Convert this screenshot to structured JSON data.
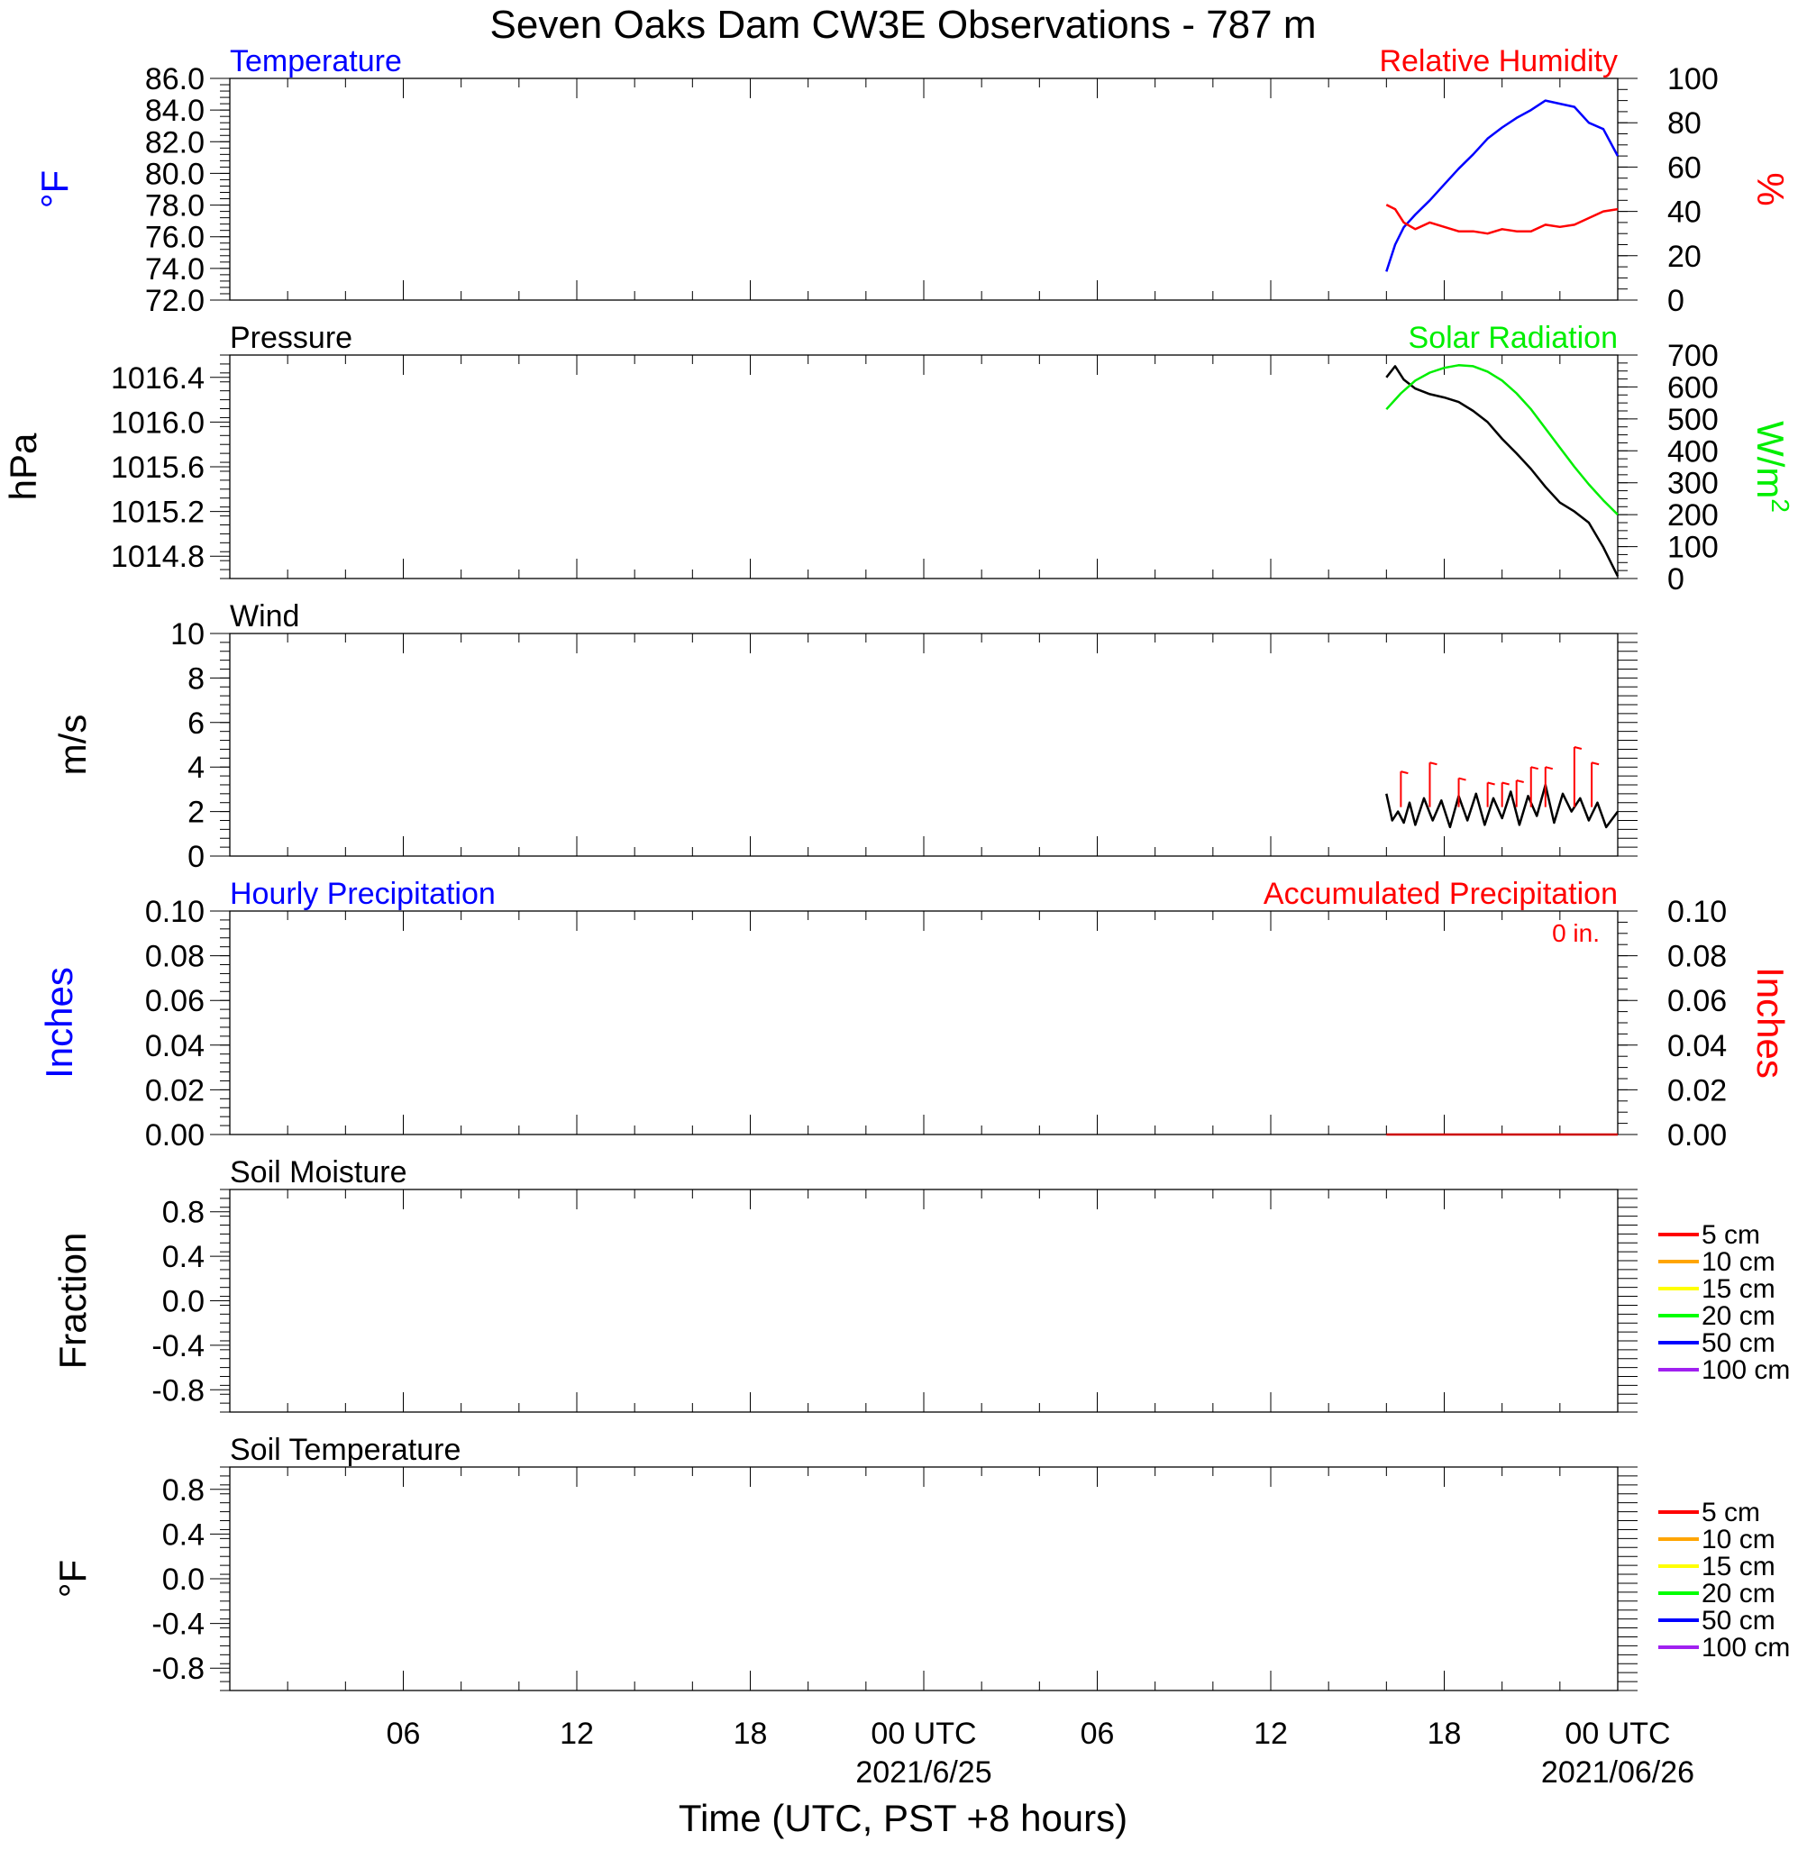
{
  "title": "Seven Oaks Dam CW3E Observations - 787 m",
  "colors": {
    "temperature": "#0000ff",
    "humidity": "#ff0000",
    "pressure": "#000000",
    "solar": "#00ee00",
    "wind_speed": "#000000",
    "wind_barb": "#ff0000",
    "hourly_precip": "#0000ff",
    "accum_precip": "#cc0000"
  },
  "time_axis": {
    "label": "Time (UTC, PST +8 hours)",
    "range_hours": [
      0,
      48
    ],
    "ticks": [
      {
        "hour": 6,
        "label": "06"
      },
      {
        "hour": 12,
        "label": "12"
      },
      {
        "hour": 18,
        "label": "18"
      },
      {
        "hour": 24,
        "label": "00 UTC"
      },
      {
        "hour": 30,
        "label": "06"
      },
      {
        "hour": 36,
        "label": "12"
      },
      {
        "hour": 42,
        "label": "18"
      },
      {
        "hour": 48,
        "label": "00 UTC"
      }
    ],
    "date_labels": [
      {
        "hour": 24,
        "label": "2021/6/25"
      },
      {
        "hour": 48,
        "label": "2021/06/26"
      }
    ]
  },
  "chart_data": [
    {
      "panel": "temperature-humidity",
      "type": "line",
      "left_title": "Temperature",
      "right_title": "Relative Humidity",
      "ylabel_left": "°F",
      "ylabel_right": "%",
      "ylim_left": [
        72.0,
        86.0
      ],
      "ylim_right": [
        0,
        100
      ],
      "yticks_left": [
        "86.0",
        "84.0",
        "82.0",
        "80.0",
        "78.0",
        "76.0",
        "74.0",
        "72.0"
      ],
      "yticks_right": [
        "100",
        "80",
        "60",
        "40",
        "20",
        "0"
      ],
      "series": [
        {
          "name": "Temperature",
          "axis": "left",
          "color": "#0000ff",
          "x": [
            40.0,
            40.3,
            40.6,
            41.0,
            41.5,
            42.0,
            42.5,
            43.0,
            43.5,
            44.0,
            44.5,
            45.0,
            45.5,
            46.0,
            46.5,
            47.0,
            47.5,
            48.0
          ],
          "y": [
            73.8,
            75.5,
            76.6,
            77.4,
            78.3,
            79.3,
            80.3,
            81.2,
            82.2,
            82.9,
            83.5,
            84.0,
            84.6,
            84.4,
            84.2,
            83.2,
            82.8,
            81.1
          ]
        },
        {
          "name": "Relative Humidity",
          "axis": "right",
          "color": "#ff0000",
          "x": [
            40.0,
            40.3,
            40.6,
            41.0,
            41.5,
            42.0,
            42.5,
            43.0,
            43.5,
            44.0,
            44.5,
            45.0,
            45.5,
            46.0,
            46.5,
            47.0,
            47.5,
            48.0
          ],
          "y": [
            43,
            41,
            35,
            32,
            35,
            33,
            31,
            31,
            30,
            32,
            31,
            31,
            34,
            33,
            34,
            37,
            40,
            41
          ]
        }
      ]
    },
    {
      "panel": "pressure-solar",
      "type": "line",
      "left_title": "Pressure",
      "right_title": "Solar Radiation",
      "ylabel_left": "hPa",
      "ylabel_right": "W/m",
      "ylabel_right_sup": "2",
      "ylim_left": [
        1014.6,
        1016.6
      ],
      "ylim_right": [
        0,
        700
      ],
      "yticks_left": [
        "1016.4",
        "1016.0",
        "1015.6",
        "1015.2",
        "1014.8"
      ],
      "yticks_right": [
        "700",
        "600",
        "500",
        "400",
        "300",
        "200",
        "100",
        "0"
      ],
      "series": [
        {
          "name": "Pressure",
          "axis": "left",
          "color": "#000000",
          "x": [
            40.0,
            40.3,
            40.6,
            41.0,
            41.5,
            42.0,
            42.5,
            43.0,
            43.5,
            44.0,
            44.5,
            45.0,
            45.5,
            46.0,
            46.5,
            47.0,
            47.5,
            48.0
          ],
          "y": [
            1016.4,
            1016.5,
            1016.38,
            1016.3,
            1016.25,
            1016.22,
            1016.18,
            1016.1,
            1016.0,
            1015.85,
            1015.72,
            1015.58,
            1015.42,
            1015.28,
            1015.2,
            1015.1,
            1014.88,
            1014.62
          ]
        },
        {
          "name": "Solar Radiation",
          "axis": "right",
          "color": "#00ee00",
          "x": [
            40.0,
            40.5,
            41.0,
            41.5,
            42.0,
            42.5,
            43.0,
            43.5,
            44.0,
            44.5,
            45.0,
            45.5,
            46.0,
            46.5,
            47.0,
            47.5,
            48.0
          ],
          "y": [
            530,
            580,
            620,
            645,
            660,
            668,
            665,
            648,
            620,
            580,
            530,
            470,
            410,
            350,
            295,
            245,
            200
          ]
        }
      ]
    },
    {
      "panel": "wind",
      "type": "line",
      "left_title": "Wind",
      "ylabel_left": "m/s",
      "ylim_left": [
        0,
        10
      ],
      "yticks_left": [
        "10",
        "8",
        "6",
        "4",
        "2",
        "0"
      ],
      "series": [
        {
          "name": "Wind speed",
          "axis": "left",
          "color": "#000000",
          "x": [
            40.0,
            40.2,
            40.4,
            40.6,
            40.8,
            41.0,
            41.3,
            41.6,
            41.9,
            42.2,
            42.5,
            42.8,
            43.1,
            43.4,
            43.7,
            44.0,
            44.3,
            44.6,
            44.9,
            45.2,
            45.5,
            45.8,
            46.1,
            46.4,
            46.7,
            47.0,
            47.3,
            47.6,
            48.0
          ],
          "y": [
            2.8,
            1.6,
            2.0,
            1.5,
            2.4,
            1.4,
            2.6,
            1.6,
            2.5,
            1.3,
            2.7,
            1.6,
            2.8,
            1.4,
            2.6,
            1.7,
            2.9,
            1.4,
            2.7,
            1.8,
            3.2,
            1.5,
            2.8,
            2.0,
            2.6,
            1.6,
            2.4,
            1.3,
            2.0
          ]
        }
      ],
      "barbs": {
        "color": "#ff0000",
        "x": [
          40.5,
          41.5,
          42.5,
          43.5,
          44.0,
          44.5,
          45.0,
          45.5,
          46.5,
          47.1
        ],
        "top": [
          3.8,
          4.2,
          3.5,
          3.3,
          3.3,
          3.4,
          4.0,
          4.0,
          4.9,
          4.2
        ]
      }
    },
    {
      "panel": "precipitation",
      "type": "line",
      "left_title": "Hourly Precipitation",
      "right_title": "Accumulated Precipitation",
      "annotation": "0 in.",
      "ylabel_left": "Inches",
      "ylabel_right": "Inches",
      "ylim_left": [
        0.0,
        0.1
      ],
      "ylim_right": [
        0.0,
        0.1
      ],
      "yticks_left": [
        "0.10",
        "0.08",
        "0.06",
        "0.04",
        "0.02",
        "0.00"
      ],
      "yticks_right": [
        "0.10",
        "0.08",
        "0.06",
        "0.04",
        "0.02",
        "0.00"
      ],
      "series": [
        {
          "name": "Accumulated Precipitation",
          "axis": "right",
          "color": "#cc0000",
          "x": [
            40.0,
            48.0
          ],
          "y": [
            0.0,
            0.0
          ]
        }
      ]
    },
    {
      "panel": "soil-moisture",
      "type": "line",
      "left_title": "Soil Moisture",
      "ylabel_left": "Fraction",
      "ylim_left": [
        -1.0,
        1.0
      ],
      "yticks_left": [
        "0.8",
        "0.4",
        "0.0",
        "-0.4",
        "-0.8"
      ],
      "legend": [
        {
          "label": "5 cm",
          "color": "#ff0000"
        },
        {
          "label": "10 cm",
          "color": "#ffa500"
        },
        {
          "label": "15 cm",
          "color": "#ffff00"
        },
        {
          "label": "20 cm",
          "color": "#00ff00"
        },
        {
          "label": "50 cm",
          "color": "#0000ff"
        },
        {
          "label": "100 cm",
          "color": "#a020f0"
        }
      ],
      "series": []
    },
    {
      "panel": "soil-temperature",
      "type": "line",
      "left_title": "Soil Temperature",
      "ylabel_left": "°F",
      "ylim_left": [
        -1.0,
        1.0
      ],
      "yticks_left": [
        "0.8",
        "0.4",
        "0.0",
        "-0.4",
        "-0.8"
      ],
      "legend": [
        {
          "label": "5 cm",
          "color": "#ff0000"
        },
        {
          "label": "10 cm",
          "color": "#ffa500"
        },
        {
          "label": "15 cm",
          "color": "#ffff00"
        },
        {
          "label": "20 cm",
          "color": "#00ff00"
        },
        {
          "label": "50 cm",
          "color": "#0000ff"
        },
        {
          "label": "100 cm",
          "color": "#a020f0"
        }
      ],
      "series": []
    }
  ]
}
